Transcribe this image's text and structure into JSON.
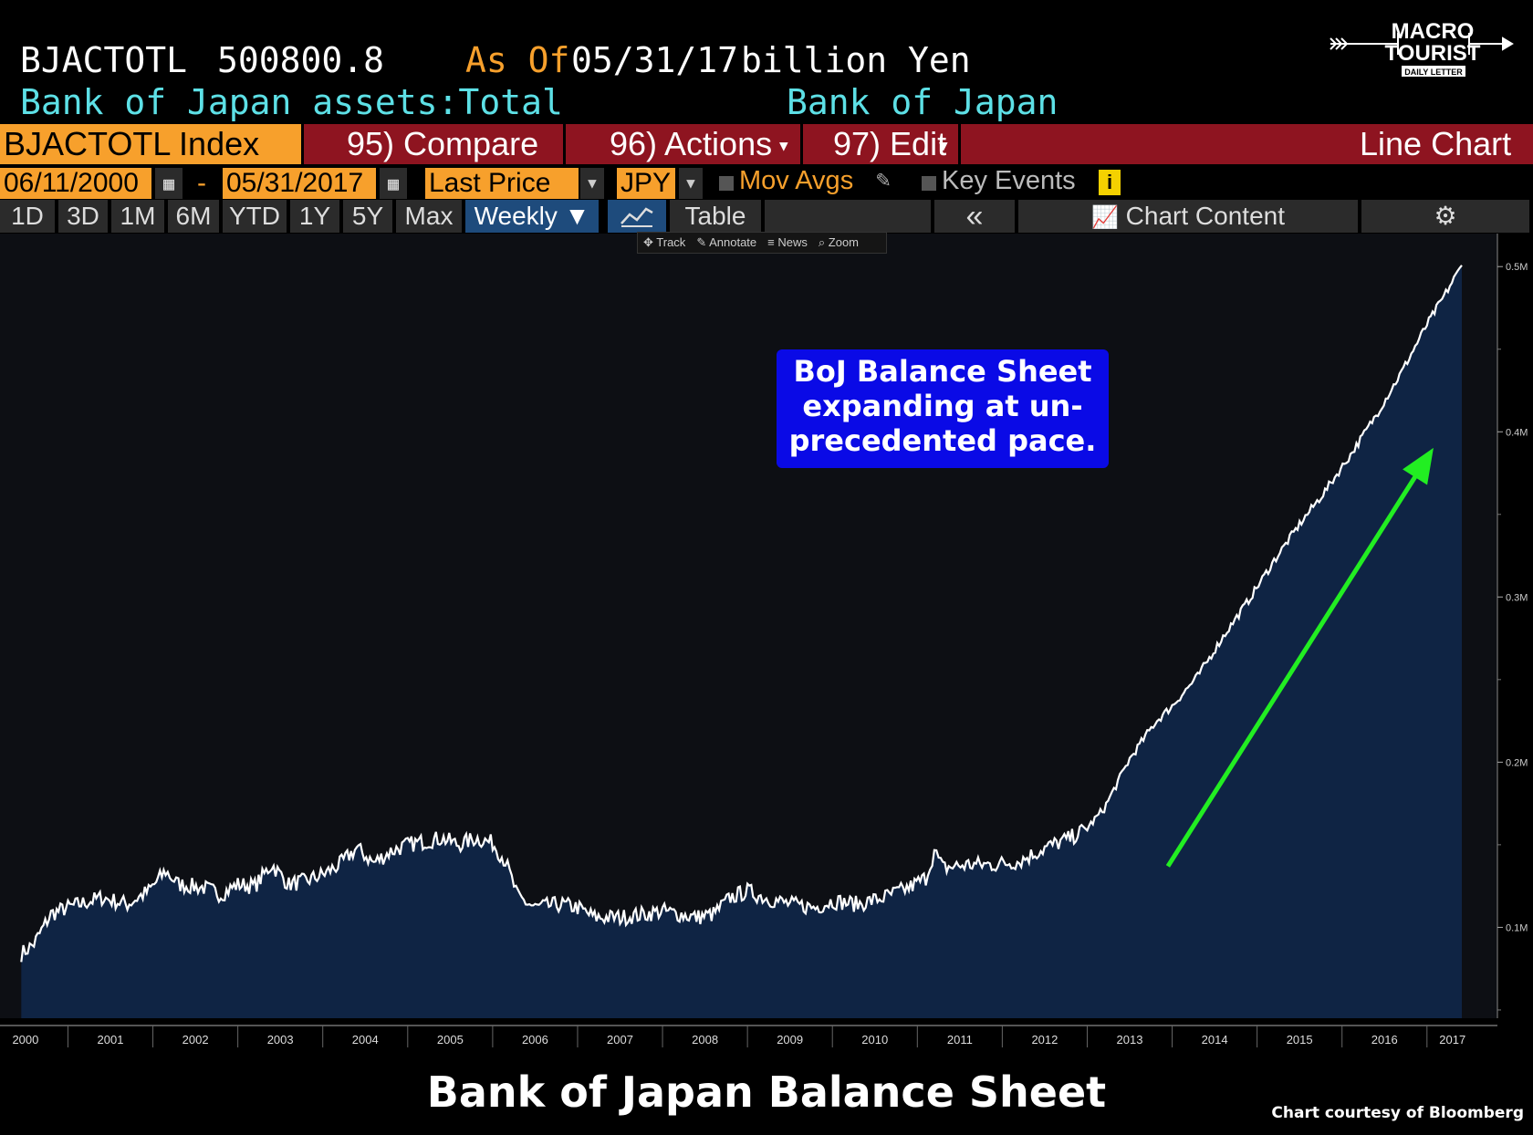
{
  "header": {
    "ticker": "BJACTOTL",
    "value": "500800.8",
    "as_of_label": "As Of",
    "as_of_date": "05/31/17",
    "units": "billion Yen",
    "description": "Bank of Japan assets:Total",
    "source": "Bank of Japan"
  },
  "logo": {
    "line1": "MACRO",
    "line2": "TOURIST",
    "line3": "DAILY LETTER"
  },
  "command_bar": {
    "index_label": "BJACTOTL Index",
    "compare": "95) Compare",
    "actions": "96) Actions",
    "edit": "97) Edit",
    "chart_type": "Line Chart"
  },
  "controls": {
    "start_date": "06/11/2000",
    "dash": "-",
    "end_date": "05/31/2017",
    "field": "Last Price",
    "currency": "JPY",
    "mov_avgs": "Mov Avgs",
    "key_events": "Key Events",
    "info": "i"
  },
  "tabs": {
    "periods": [
      "1D",
      "3D",
      "1M",
      "6M",
      "YTD",
      "1Y",
      "5Y",
      "Max"
    ],
    "frequency": "Weekly ▼",
    "table": "Table",
    "collapse": "«",
    "chart_content": "Chart Content",
    "settings": "⚙"
  },
  "mini_toolbar": [
    "Track",
    "Annotate",
    "News",
    "Zoom"
  ],
  "annotation": "BoJ Balance Sheet expanding at un- precedented pace.",
  "annotation_lines": [
    "BoJ Balance Sheet",
    "expanding at un-",
    "precedented pace."
  ],
  "footer": {
    "title": "Bank of Japan Balance Sheet",
    "credit": "Chart courtesy of Bloomberg"
  },
  "colors": {
    "background": "#000000",
    "plot_bg": "#0d0f14",
    "area_fill": "#0f2444",
    "line": "#ffffff",
    "arrow": "#22ee22",
    "cyan_text": "#5de0e6",
    "orange": "#f7a02c",
    "bar_red": "#8e1420",
    "annotation_bg": "#0a0ae6"
  },
  "chart_data": {
    "type": "area",
    "x_tick_labels": [
      "2000",
      "2001",
      "2002",
      "2003",
      "2004",
      "2005",
      "2006",
      "2007",
      "2008",
      "2009",
      "2010",
      "2011",
      "2012",
      "2013",
      "2014",
      "2015",
      "2016",
      "2017"
    ],
    "y_tick_labels": [
      "0.1M",
      "0.2M",
      "0.3M",
      "0.4M",
      "0.5M"
    ],
    "y_ticks": [
      100000,
      200000,
      300000,
      400000,
      500000
    ],
    "ylim": [
      45000,
      520000
    ],
    "xlim": [
      2000.2,
      2017.55
    ],
    "series": [
      {
        "points": [
          [
            2000.45,
            84000
          ],
          [
            2000.6,
            90000
          ],
          [
            2000.8,
            108000
          ],
          [
            2001.0,
            112000
          ],
          [
            2001.2,
            115000
          ],
          [
            2001.4,
            118000
          ],
          [
            2001.7,
            114000
          ],
          [
            2001.95,
            122000
          ],
          [
            2002.15,
            134000
          ],
          [
            2002.3,
            126000
          ],
          [
            2002.6,
            124000
          ],
          [
            2002.8,
            120000
          ],
          [
            2003.0,
            126000
          ],
          [
            2003.2,
            125000
          ],
          [
            2003.4,
            138000
          ],
          [
            2003.6,
            126000
          ],
          [
            2003.8,
            128000
          ],
          [
            2004.0,
            132000
          ],
          [
            2004.2,
            138000
          ],
          [
            2004.4,
            148000
          ],
          [
            2004.6,
            139000
          ],
          [
            2004.8,
            146000
          ],
          [
            2005.0,
            150000
          ],
          [
            2005.2,
            152000
          ],
          [
            2005.4,
            154000
          ],
          [
            2005.6,
            150000
          ],
          [
            2005.8,
            154000
          ],
          [
            2006.0,
            151000
          ],
          [
            2006.15,
            140000
          ],
          [
            2006.3,
            118000
          ],
          [
            2006.5,
            112000
          ],
          [
            2006.8,
            114000
          ],
          [
            2007.0,
            112000
          ],
          [
            2007.2,
            106000
          ],
          [
            2007.5,
            106000
          ],
          [
            2007.8,
            108000
          ],
          [
            2008.0,
            110000
          ],
          [
            2008.2,
            108000
          ],
          [
            2008.4,
            106000
          ],
          [
            2008.6,
            108000
          ],
          [
            2008.8,
            118000
          ],
          [
            2009.0,
            122000
          ],
          [
            2009.2,
            118000
          ],
          [
            2009.5,
            114000
          ],
          [
            2009.8,
            112000
          ],
          [
            2010.0,
            116000
          ],
          [
            2010.3,
            114000
          ],
          [
            2010.6,
            118000
          ],
          [
            2010.9,
            124000
          ],
          [
            2011.1,
            130000
          ],
          [
            2011.2,
            146000
          ],
          [
            2011.3,
            136000
          ],
          [
            2011.6,
            138000
          ],
          [
            2011.9,
            138000
          ],
          [
            2012.2,
            140000
          ],
          [
            2012.5,
            148000
          ],
          [
            2012.8,
            154000
          ],
          [
            2013.0,
            160000
          ],
          [
            2013.2,
            172000
          ],
          [
            2013.5,
            202000
          ],
          [
            2013.8,
            224000
          ],
          [
            2014.0,
            234000
          ],
          [
            2014.3,
            252000
          ],
          [
            2014.6,
            276000
          ],
          [
            2014.9,
            298000
          ],
          [
            2015.2,
            322000
          ],
          [
            2015.5,
            344000
          ],
          [
            2015.8,
            364000
          ],
          [
            2016.1,
            386000
          ],
          [
            2016.4,
            410000
          ],
          [
            2016.7,
            436000
          ],
          [
            2017.0,
            465000
          ],
          [
            2017.2,
            482000
          ],
          [
            2017.41,
            500800
          ]
        ]
      }
    ]
  }
}
